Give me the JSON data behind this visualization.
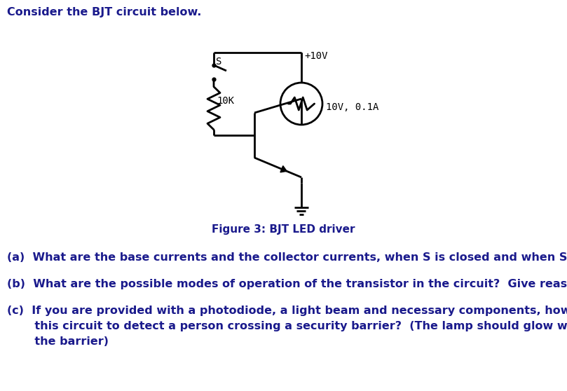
{
  "title_text": "Consider the BJT circuit below.",
  "figure_caption": "Figure 3: BJT LED driver",
  "question_a": "(a)  What are the base currents and the collector currents, when S is closed and when S is open?",
  "question_b": "(b)  What are the possible modes of operation of the transistor in the circuit?  Give reasons to your answer.",
  "question_c_1": "(c)  If you are provided with a photodiode, a light beam and necessary components, how would you modify",
  "question_c_2": "       this circuit to detect a person crossing a security barrier?  (The lamp should glow when a person crosses",
  "question_c_3": "       the barrier)",
  "vcc_label": "+10V",
  "resistor_label": "10K",
  "switch_label": "S",
  "lamp_label": "10V, 0.1A",
  "bg_color": "#ffffff",
  "line_color": "#000000",
  "text_color": "#1a1a8c",
  "font_size": 11.5,
  "lw": 2.0
}
